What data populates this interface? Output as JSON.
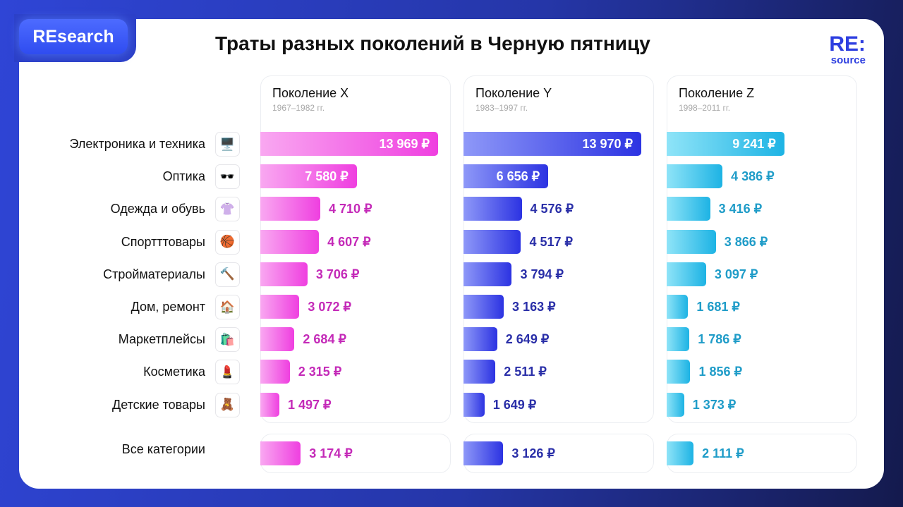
{
  "logo": "REsearch",
  "title": "Траты разных поколений в Черную пятницу",
  "brand": {
    "big": "RE:",
    "small": "source"
  },
  "colors": {
    "X": [
      "#f9a8f1",
      "#ef3fe0",
      "#c42ab8"
    ],
    "Y": [
      "#8e98f8",
      "#2c33e2",
      "#2a2fa8"
    ],
    "Z": [
      "#8fe4f8",
      "#1db3e4",
      "#1f9cc8"
    ]
  },
  "chart_data": {
    "type": "bar",
    "orientation": "horizontal",
    "currency": "₽",
    "categories": [
      "Электроника и техника",
      "Оптика",
      "Одежда и обувь",
      "Спортттовары",
      "Стройматериалы",
      "Дом, ремонт",
      "Маркетплейсы",
      "Косметика",
      "Детские товары"
    ],
    "icons": [
      "desktop-computer-icon",
      "glasses-icon",
      "blouse-icon",
      "basketball-icon",
      "hammer-icon",
      "house-icon",
      "shopping-bags-icon",
      "lipstick-icon",
      "teddy-bear-icon"
    ],
    "icon_glyphs": [
      "🖥️",
      "🕶️",
      "👚",
      "🏀",
      "🔨",
      "🏠",
      "🛍️",
      "💄",
      "🧸"
    ],
    "total_label": "Все категории",
    "series": [
      {
        "key": "X",
        "name": "Поколение X",
        "years": "1967–1982 гг.",
        "values": [
          13969,
          7580,
          4710,
          4607,
          3706,
          3072,
          2684,
          2315,
          1497
        ],
        "labels": [
          "13 969 ₽",
          "7 580 ₽",
          "4 710 ₽",
          "4 607 ₽",
          "3 706 ₽",
          "3 072 ₽",
          "2 684 ₽",
          "2 315 ₽",
          "1 497 ₽"
        ],
        "total": 3174,
        "total_label": "3 174 ₽"
      },
      {
        "key": "Y",
        "name": "Поколение Y",
        "years": "1983–1997 гг.",
        "values": [
          13970,
          6656,
          4576,
          4517,
          3794,
          3163,
          2649,
          2511,
          1649
        ],
        "labels": [
          "13 970 ₽",
          "6 656 ₽",
          "4 576 ₽",
          "4 517 ₽",
          "3 794 ₽",
          "3 163 ₽",
          "2 649 ₽",
          "2 511 ₽",
          "1 649 ₽"
        ],
        "total": 3126,
        "total_label": "3 126 ₽"
      },
      {
        "key": "Z",
        "name": "Поколение Z",
        "years": "1998–2011 гг.",
        "values": [
          9241,
          4386,
          3416,
          3866,
          3097,
          1681,
          1786,
          1856,
          1373
        ],
        "labels": [
          "9 241 ₽",
          "4 386 ₽",
          "3 416 ₽",
          "3 866 ₽",
          "3 097 ₽",
          "1 681 ₽",
          "1 786 ₽",
          "1 856 ₽",
          "1 373 ₽"
        ],
        "total": 2111,
        "total_label": "2 111 ₽"
      }
    ]
  }
}
